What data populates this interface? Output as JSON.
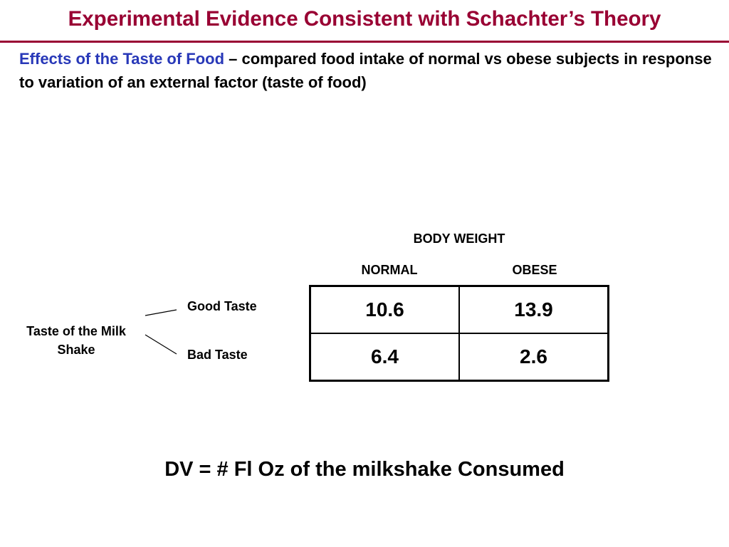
{
  "slide": {
    "title": "Experimental Evidence Consistent with Schachter’s Theory",
    "description_lead": "Effects of the Taste of Food",
    "description_rest": " – compared food intake of normal vs obese subjects in response to variation of an external factor (taste of food)",
    "accent_color": "#2838b8",
    "title_color": "#990033"
  },
  "design": {
    "column_group_label": "BODY WEIGHT",
    "columns": [
      "NORMAL",
      "OBESE"
    ],
    "row_factor_label": "Taste of the Milk Shake",
    "rows": [
      {
        "label": "Good Taste",
        "values": [
          "10.6",
          "13.9"
        ]
      },
      {
        "label": "Bad Taste",
        "values": [
          "6.4",
          "2.6"
        ]
      }
    ]
  },
  "dv_text": "DV = # Fl Oz of the milkshake Consumed"
}
